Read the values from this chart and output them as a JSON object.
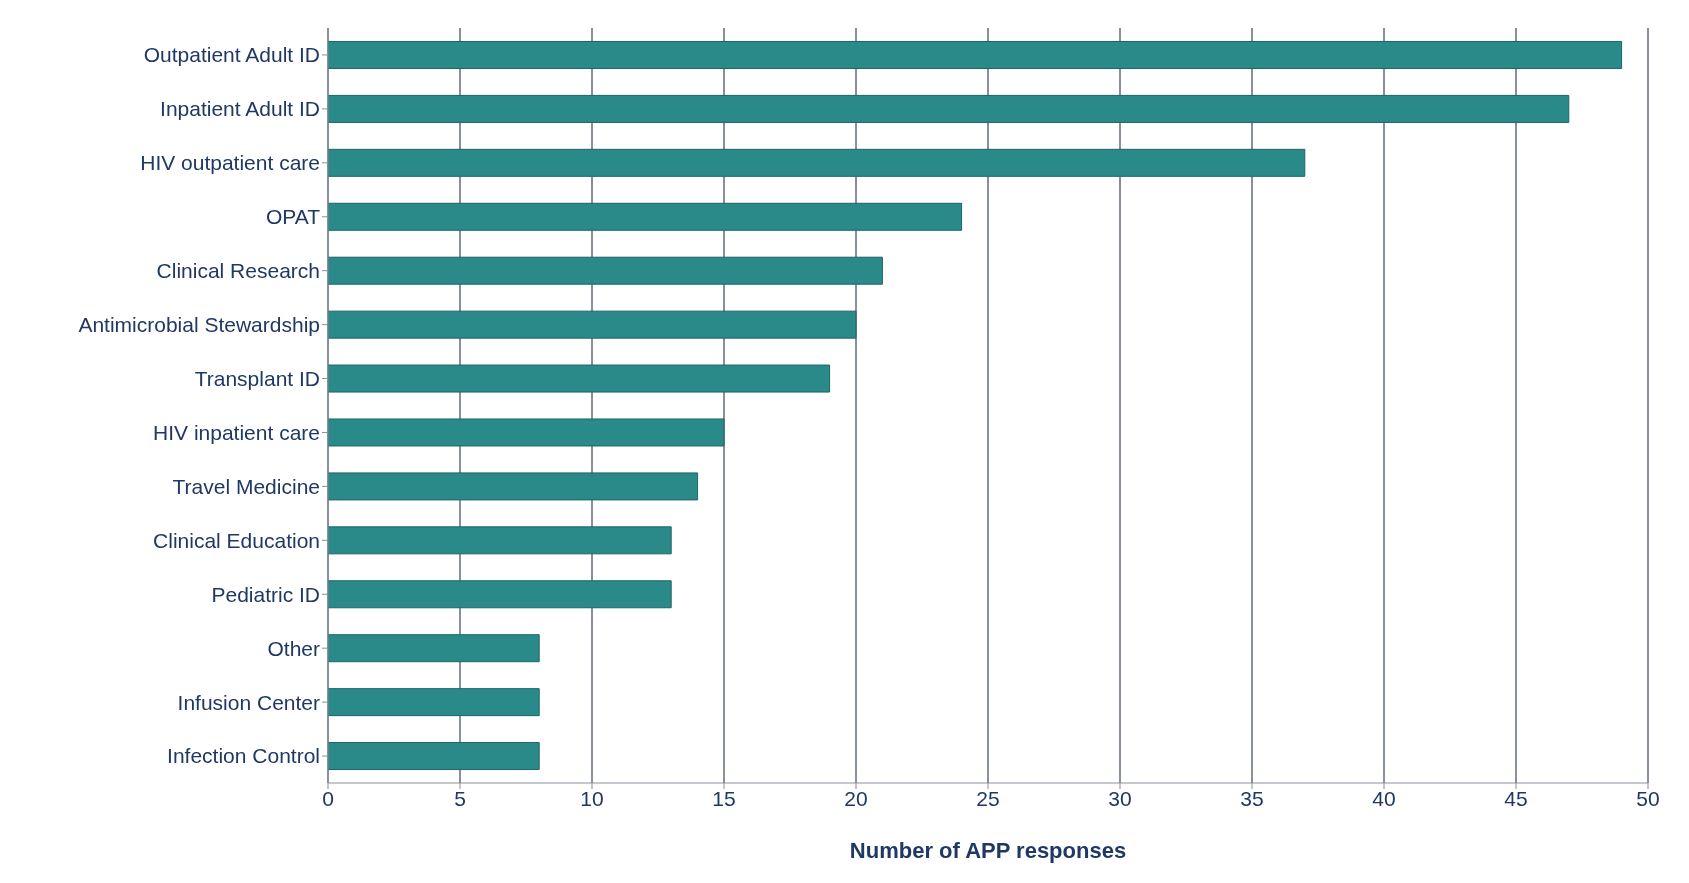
{
  "chart_data": {
    "type": "bar",
    "orientation": "horizontal",
    "xlabel": "Number of APP responses",
    "categories": [
      "Outpatient Adult ID",
      "Inpatient Adult ID",
      "HIV outpatient care",
      "OPAT",
      "Clinical Research",
      "Antimicrobial Stewardship",
      "Transplant ID",
      "HIV inpatient care",
      "Travel Medicine",
      "Clinical Education",
      "Pediatric ID",
      "Other",
      "Infusion Center",
      "Infection Control"
    ],
    "values": [
      49,
      47,
      37,
      24,
      21,
      20,
      19,
      15,
      14,
      13,
      13,
      8,
      8,
      8
    ],
    "color": "#2a8a8a",
    "xlim": [
      0,
      50
    ],
    "xticks": [
      0,
      5,
      10,
      15,
      20,
      25,
      30,
      35,
      40,
      45,
      50
    ],
    "grid": "x"
  }
}
